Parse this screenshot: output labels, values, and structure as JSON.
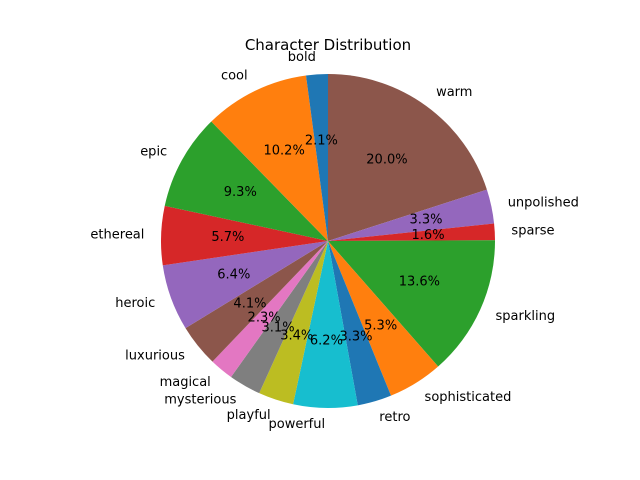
{
  "chart_data": {
    "type": "pie",
    "title": "Character Distribution",
    "start_angle_deg": 90,
    "direction": "clockwise",
    "slices": [
      {
        "label": "warm",
        "pct": "20.0%",
        "value": 20.0,
        "color": "#8c564b"
      },
      {
        "label": "unpolished",
        "pct": "3.3%",
        "value": 3.3,
        "color": "#9467bd"
      },
      {
        "label": "sparse",
        "pct": "1.6%",
        "value": 1.6,
        "color": "#d62728"
      },
      {
        "label": "sparkling",
        "pct": "13.6%",
        "value": 13.6,
        "color": "#2ca02c"
      },
      {
        "label": "sophisticated",
        "pct": "5.3%",
        "value": 5.3,
        "color": "#ff7f0e"
      },
      {
        "label": "retro",
        "pct": "3.3%",
        "value": 3.3,
        "color": "#1f77b4"
      },
      {
        "label": "powerful",
        "pct": "6.2%",
        "value": 6.2,
        "color": "#17becf"
      },
      {
        "label": "playful",
        "pct": "3.4%",
        "value": 3.4,
        "color": "#bcbd22"
      },
      {
        "label": "mysterious",
        "pct": "3.1%",
        "value": 3.1,
        "color": "#7f7f7f"
      },
      {
        "label": "magical",
        "pct": "2.3%",
        "value": 2.3,
        "color": "#e377c2"
      },
      {
        "label": "luxurious",
        "pct": "4.1%",
        "value": 4.1,
        "color": "#8c564b"
      },
      {
        "label": "heroic",
        "pct": "6.4%",
        "value": 6.4,
        "color": "#9467bd"
      },
      {
        "label": "ethereal",
        "pct": "5.7%",
        "value": 5.7,
        "color": "#d62728"
      },
      {
        "label": "epic",
        "pct": "9.3%",
        "value": 9.3,
        "color": "#2ca02c"
      },
      {
        "label": "cool",
        "pct": "10.2%",
        "value": 10.2,
        "color": "#ff7f0e"
      },
      {
        "label": "bold",
        "pct": "2.1%",
        "value": 2.1,
        "color": "#1f77b4"
      }
    ]
  }
}
